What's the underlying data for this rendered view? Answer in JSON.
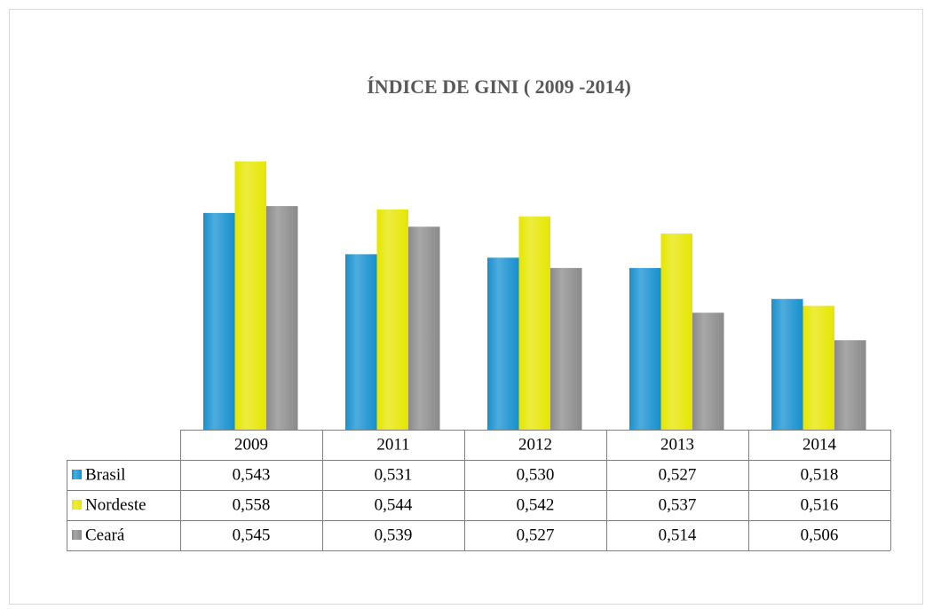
{
  "chart_data": {
    "type": "bar",
    "title": "ÍNDICE DE GINI ( 2009 -2014)",
    "categories": [
      "2009",
      "2011",
      "2012",
      "2013",
      "2014"
    ],
    "series": [
      {
        "name": "Brasil",
        "color": "#1590d0",
        "values": [
          0.543,
          0.531,
          0.53,
          0.527,
          0.518
        ],
        "value_labels": [
          "0,543",
          "0,531",
          "0,530",
          "0,527",
          "0,518"
        ]
      },
      {
        "name": "Nordeste",
        "color": "#e6e600",
        "values": [
          0.558,
          0.544,
          0.542,
          0.537,
          0.516
        ],
        "value_labels": [
          "0,558",
          "0,544",
          "0,542",
          "0,537",
          "0,516"
        ]
      },
      {
        "name": "Ceará",
        "color": "#8a8a8a",
        "values": [
          0.545,
          0.539,
          0.527,
          0.514,
          0.506
        ],
        "value_labels": [
          "0,545",
          "0,539",
          "0,527",
          "0,514",
          "0,506"
        ]
      }
    ],
    "ylim": [
      0.48,
      0.56
    ]
  }
}
